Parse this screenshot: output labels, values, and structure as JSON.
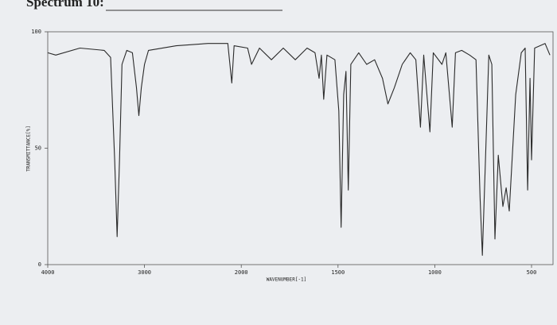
{
  "chart_data": {
    "type": "line",
    "title": "Spectrum 10:",
    "x_label": "WAVENUMBER[-1]",
    "y_label": "TRANSMITTANCE[%]",
    "xlim": [
      4000,
      400
    ],
    "ylim": [
      0,
      100
    ],
    "xticks": [
      4000,
      3000,
      2000,
      1500,
      1000,
      500
    ],
    "yticks": [
      0,
      50,
      100
    ],
    "series": [
      {
        "name": "spectrum",
        "color": "#2a2a2a",
        "x": [
          4000,
          3917,
          3667,
          3417,
          3350,
          3308,
          3283,
          3258,
          3233,
          3183,
          3125,
          3083,
          3058,
          3033,
          3000,
          2959,
          2672,
          2344,
          2139,
          2098,
          2074,
          1967,
          1947,
          1906,
          1844,
          1783,
          1721,
          1660,
          1619,
          1598,
          1586,
          1574,
          1557,
          1516,
          1496,
          1484,
          1471,
          1459,
          1447,
          1434,
          1393,
          1352,
          1311,
          1270,
          1242,
          1209,
          1168,
          1127,
          1098,
          1074,
          1057,
          1025,
          1008,
          963,
          943,
          910,
          893,
          861,
          820,
          787,
          766,
          754,
          738,
          721,
          705,
          689,
          672,
          648,
          631,
          615,
          582,
          553,
          533,
          520,
          508,
          500,
          484,
          430,
          405
        ],
        "values": [
          91,
          90,
          93,
          92,
          89,
          45,
          12,
          45,
          86,
          92,
          91,
          76,
          64,
          76,
          86,
          92,
          94,
          95,
          95,
          78,
          94,
          93,
          86,
          93,
          88,
          93,
          88,
          93,
          91,
          80,
          90,
          71,
          90,
          88,
          66,
          16,
          73,
          83,
          32,
          86,
          91,
          86,
          88,
          80,
          69,
          76,
          86,
          91,
          88,
          59,
          90,
          57,
          91,
          86,
          91,
          59,
          91,
          92,
          90,
          88,
          29,
          4,
          45,
          90,
          86,
          11,
          47,
          25,
          33,
          23,
          73,
          91,
          93,
          32,
          80,
          45,
          93,
          95,
          90
        ]
      }
    ]
  }
}
